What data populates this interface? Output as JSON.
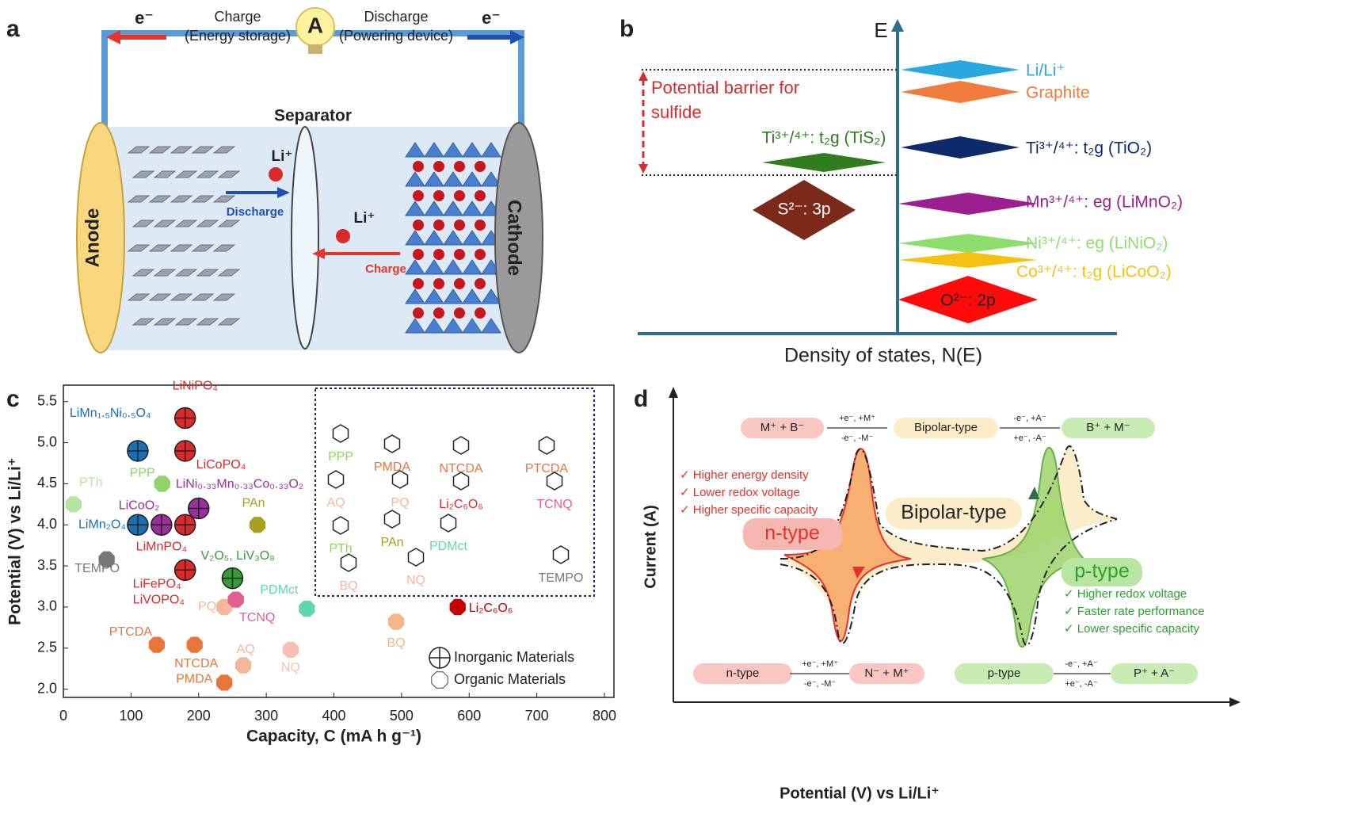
{
  "panel_a": {
    "label": "a",
    "electron_left": "e⁻",
    "charge": "Charge",
    "charge_note": "(Energy storage)",
    "ammeter": "A",
    "discharge": "Discharge",
    "discharge_note": "(Powering device)",
    "electron_right": "e⁻",
    "separator": "Separator",
    "anode": "Anode",
    "cathode": "Cathode",
    "ion_top": "Li⁺",
    "arrow_discharge": "Discharge",
    "ion_bottom": "Li⁺",
    "arrow_charge": "Charge"
  },
  "panel_b": {
    "label": "b",
    "y_axis": "E",
    "x_axis": "Density of states, N(E)",
    "barrier": [
      "Potential barrier for",
      "sulfide"
    ],
    "levels": [
      {
        "label": "Li/Li⁺",
        "color": "#29a8e0"
      },
      {
        "label": "Graphite",
        "color": "#ef7b3c"
      },
      {
        "label": "Ti³⁺/⁴⁺: t₂g (TiO₂)",
        "color": "#0d2a6b"
      },
      {
        "label": "Mn³⁺/⁴⁺: eg (LiMnO₂)",
        "color": "#9b1f8f"
      },
      {
        "label": "Ni³⁺/⁴⁺: eg (LiNiO₂)",
        "color": "#8ede6e"
      },
      {
        "label": "Co³⁺/⁴⁺: t₂g (LiCoO₂)",
        "color": "#f5c211"
      },
      {
        "label": "O²⁻: 2p",
        "color": "#ff0a0a"
      },
      {
        "label": "Ti³⁺/⁴⁺: t₂g (TiS₂)",
        "color": "#2f7d1f"
      },
      {
        "label": "S²⁻: 3p",
        "color": "#7b2a1a"
      }
    ]
  },
  "chart_data": {
    "type": "scatter",
    "panel_label": "c",
    "x_label": "Capacity, C (mA h g⁻¹)",
    "y_label": "Potential (V) vs Li/Li⁺",
    "xlim": [
      0,
      800
    ],
    "xticks": [
      0,
      100,
      200,
      300,
      400,
      500,
      600,
      700,
      800
    ],
    "ylim": [
      1.9,
      5.7
    ],
    "yticks": [
      {
        "value": 2,
        "label": "2.0"
      },
      2.5,
      {
        "value": 3,
        "label": "3.0"
      },
      3.5,
      {
        "value": 4,
        "label": "4.0"
      },
      4.5,
      {
        "value": 5,
        "label": "5.0"
      },
      5.5
    ],
    "legend": "lower right",
    "series": [
      {
        "name": "Inorganic Materials",
        "marker": "circle-cross",
        "x": [
          180,
          180,
          110,
          110,
          145,
          180,
          200,
          250,
          180,
          180
        ],
        "values": [
          5.3,
          4.9,
          4.9,
          4.0,
          4.0,
          4.0,
          4.2,
          3.35,
          3.45,
          3.45
        ],
        "labels": [
          "LiNiPO₄",
          "LiCoPO₄",
          "LiMn₁.₅Ni₀.₅O₄",
          "LiMn₂O₄",
          "LiCoO₂",
          "LiMnPO₄",
          "LiNi₀.₃₃Mn₀.₃₃Co₀.₃₃O₂",
          "V₂O₅, LiV₃O₈",
          "LiFePO₄",
          "LiVOPO₄"
        ],
        "colors": [
          "#d92b2b",
          "#d92b2b",
          "#1a6fb5",
          "#1a6fb5",
          "#9b2f9b",
          "#d92b2b",
          "#9b2f9b",
          "#3a9a3a",
          "#d92b2b",
          "#d92b2b"
        ]
      },
      {
        "name": "Organic Materials",
        "marker": "octagon",
        "x": [
          146,
          15,
          287,
          64,
          238,
          255,
          360,
          583,
          492,
          138,
          194,
          266,
          336,
          238
        ],
        "values": [
          4.5,
          4.25,
          4.0,
          3.58,
          3.0,
          3.09,
          2.98,
          3.0,
          2.82,
          2.54,
          2.54,
          2.29,
          2.48,
          2.08
        ],
        "labels": [
          "PPP",
          "PTh",
          "PAn",
          "TEMPO",
          "PQ",
          "TCNQ",
          "PDMct",
          "Li₂C₆O₆",
          "BQ",
          "PTCDA",
          "NTCDA",
          "AQ",
          "NQ",
          "PMDA"
        ],
        "colors": [
          "#8fd36a",
          "#b6e3a0",
          "#a8a020",
          "#777777",
          "#f4b79a",
          "#e0608f",
          "#5fd6b0",
          "#c40000",
          "#f4b58a",
          "#e8763a",
          "#e8763a",
          "#f4b79a",
          "#f6c1b0",
          "#e8763a"
        ]
      }
    ],
    "inset": [
      {
        "label": "PPP",
        "color": "#8fd36a"
      },
      {
        "label": "PMDA",
        "color": "#e8763a"
      },
      {
        "label": "NTCDA",
        "color": "#e8763a"
      },
      {
        "label": "PTCDA",
        "color": "#e8763a"
      },
      {
        "label": "AQ",
        "color": "#f4b79a"
      },
      {
        "label": "PQ",
        "color": "#f4b79a"
      },
      {
        "label": "Li₂C₆O₆",
        "color": "#d92b2b"
      },
      {
        "label": "TCNQ",
        "color": "#e0608f"
      },
      {
        "label": "PTh",
        "color": "#8fd36a"
      },
      {
        "label": "PAn",
        "color": "#a8a020"
      },
      {
        "label": "PDMct",
        "color": "#5fd6b0"
      },
      {
        "label": "BQ",
        "color": "#f4b79a"
      },
      {
        "label": "NQ",
        "color": "#f4b79a"
      },
      {
        "label": "TEMPO",
        "color": "#777777"
      }
    ]
  },
  "panel_d": {
    "label": "d",
    "y_axis": "Current (A)",
    "x_axis": "Potential (V) vs Li/Li⁺",
    "top_row": [
      "M⁺  +  B⁻",
      "+e⁻, +M⁺",
      "-e⁻, -M⁻",
      "Bipolar-type",
      "-e⁻, +A⁻",
      "+e⁻, -A⁻",
      "B⁺   +   M⁻"
    ],
    "bottom_row": [
      "n-type",
      "+e⁻, +M⁺",
      "-e⁻, -M⁻",
      "N⁻  +  M⁺",
      "p-type",
      "-e⁻, +A⁻",
      "+e⁻, -A⁻",
      "P⁺  +  A⁻"
    ],
    "n_type": {
      "title": "n-type",
      "features": [
        "✓ Higher energy density",
        "✓ Lower redox voltage",
        "✓ Higher specific capacity"
      ]
    },
    "bipolar": "Bipolar-type",
    "p_type": {
      "title": "p-type",
      "features": [
        "✓ Higher redox voltage",
        "✓ Faster rate performance",
        "✓ Lower specific capacity"
      ]
    }
  }
}
